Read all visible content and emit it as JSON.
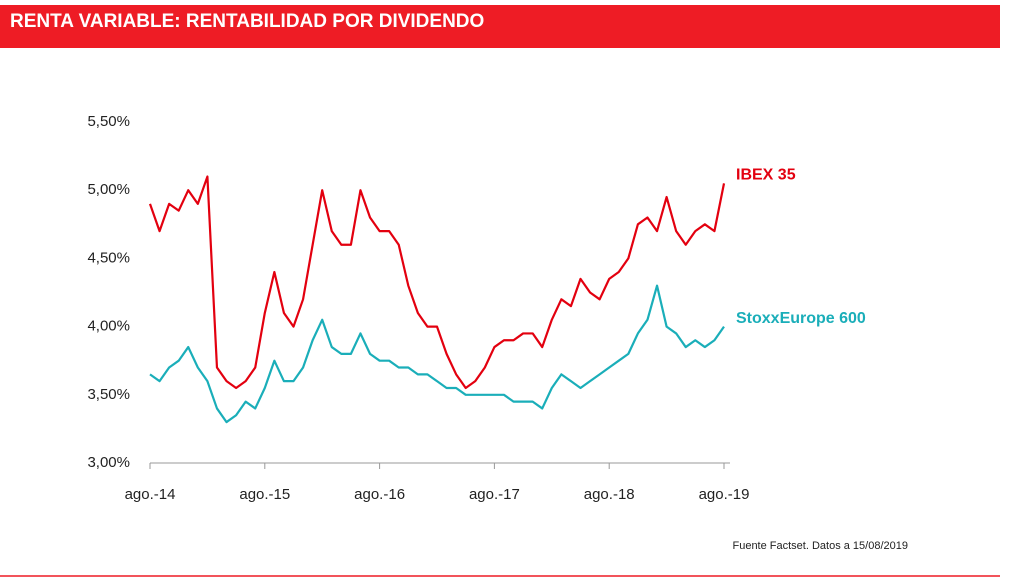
{
  "chart_data": {
    "type": "line",
    "title": "RENTA VARIABLE: RENTABILIDAD POR DIVIDENDO",
    "note": "Fuente Factset. Datos a 15/08/2019",
    "x": [
      "2014-08",
      "2014-09",
      "2014-10",
      "2014-11",
      "2014-12",
      "2015-01",
      "2015-02",
      "2015-03",
      "2015-04",
      "2015-05",
      "2015-06",
      "2015-07",
      "2015-08",
      "2015-09",
      "2015-10",
      "2015-11",
      "2015-12",
      "2016-01",
      "2016-02",
      "2016-03",
      "2016-04",
      "2016-05",
      "2016-06",
      "2016-07",
      "2016-08",
      "2016-09",
      "2016-10",
      "2016-11",
      "2016-12",
      "2017-01",
      "2017-02",
      "2017-03",
      "2017-04",
      "2017-05",
      "2017-06",
      "2017-07",
      "2017-08",
      "2017-09",
      "2017-10",
      "2017-11",
      "2017-12",
      "2018-01",
      "2018-02",
      "2018-03",
      "2018-04",
      "2018-05",
      "2018-06",
      "2018-07",
      "2018-08",
      "2018-09",
      "2018-10",
      "2018-11",
      "2018-12",
      "2019-01",
      "2019-02",
      "2019-03",
      "2019-04",
      "2019-05",
      "2019-06",
      "2019-07",
      "2019-08"
    ],
    "series": [
      {
        "name": "IBEX 35",
        "color": "#e3000f",
        "values": [
          4.9,
          4.7,
          4.9,
          4.85,
          5.0,
          4.9,
          5.1,
          3.7,
          3.6,
          3.55,
          3.6,
          3.7,
          4.1,
          4.4,
          4.1,
          4.0,
          4.2,
          4.6,
          5.0,
          4.7,
          4.6,
          4.6,
          5.0,
          4.8,
          4.7,
          4.7,
          4.6,
          4.3,
          4.1,
          4.0,
          4.0,
          3.8,
          3.65,
          3.55,
          3.6,
          3.7,
          3.85,
          3.9,
          3.9,
          3.95,
          3.95,
          3.85,
          4.05,
          4.2,
          4.15,
          4.35,
          4.25,
          4.2,
          4.35,
          4.4,
          4.5,
          4.75,
          4.8,
          4.7,
          4.95,
          4.7,
          4.6,
          4.7,
          4.75,
          4.7,
          5.05
        ]
      },
      {
        "name": "StoxxEurope 600",
        "color": "#1aaeb9",
        "values": [
          3.65,
          3.6,
          3.7,
          3.75,
          3.85,
          3.7,
          3.6,
          3.4,
          3.3,
          3.35,
          3.45,
          3.4,
          3.55,
          3.75,
          3.6,
          3.6,
          3.7,
          3.9,
          4.05,
          3.85,
          3.8,
          3.8,
          3.95,
          3.8,
          3.75,
          3.75,
          3.7,
          3.7,
          3.65,
          3.65,
          3.6,
          3.55,
          3.55,
          3.5,
          3.5,
          3.5,
          3.5,
          3.5,
          3.45,
          3.45,
          3.45,
          3.4,
          3.55,
          3.65,
          3.6,
          3.55,
          3.6,
          3.65,
          3.7,
          3.75,
          3.8,
          3.95,
          4.05,
          4.3,
          4.0,
          3.95,
          3.85,
          3.9,
          3.85,
          3.9,
          4.0
        ]
      }
    ],
    "xticks": [
      {
        "value": "2014-08",
        "label": "ago.-14"
      },
      {
        "value": "2015-08",
        "label": "ago.-15"
      },
      {
        "value": "2016-08",
        "label": "ago.-16"
      },
      {
        "value": "2017-08",
        "label": "ago.-17"
      },
      {
        "value": "2018-08",
        "label": "ago.-18"
      },
      {
        "value": "2019-08",
        "label": "ago.-19"
      }
    ],
    "ylim": [
      3.0,
      5.5
    ],
    "yticks": [
      {
        "value": 3.0,
        "label": "3,00%"
      },
      {
        "value": 3.5,
        "label": "3,50%"
      },
      {
        "value": 4.0,
        "label": "4,00%"
      },
      {
        "value": 4.5,
        "label": "4,50%"
      },
      {
        "value": 5.0,
        "label": "5,00%"
      },
      {
        "value": 5.5,
        "label": "5,50%"
      }
    ]
  }
}
